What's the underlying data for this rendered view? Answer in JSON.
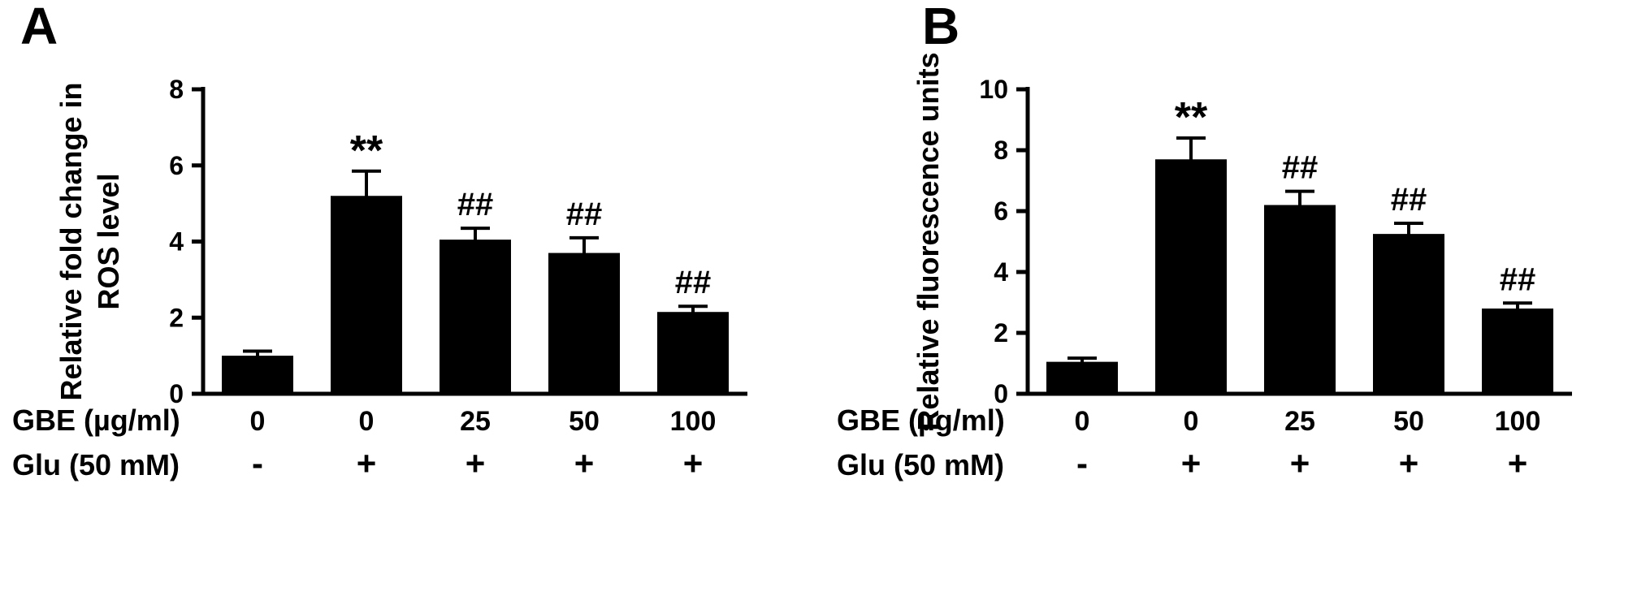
{
  "figure": {
    "background": "#ffffff",
    "ink_color": "#000000",
    "panel_labels": [
      "A",
      "B"
    ]
  },
  "chart_data": [
    {
      "type": "bar",
      "panel": "A",
      "title": "",
      "xlabel": "",
      "ylabel": "Relative fold change in ROS level",
      "ylabel_lines": [
        "Relative fold change in",
        "ROS level"
      ],
      "ylim": [
        0,
        8
      ],
      "yticks": [
        0,
        2,
        4,
        6,
        8
      ],
      "grid": false,
      "legend": "none",
      "bar_color": "#000000",
      "categories": [
        "GBE 0 / Glu -",
        "GBE 0 / Glu +",
        "GBE 25 / Glu +",
        "GBE 50 / Glu +",
        "GBE 100 / Glu +"
      ],
      "values": [
        1.0,
        5.2,
        4.05,
        3.7,
        2.15
      ],
      "errors": [
        0.12,
        0.65,
        0.3,
        0.4,
        0.15
      ],
      "annotations": [
        "",
        "**",
        "##",
        "##",
        "##"
      ],
      "x_rows": [
        {
          "label": "GBE (µg/ml)",
          "values": [
            "0",
            "0",
            "25",
            "50",
            "100"
          ]
        },
        {
          "label": "Glu (50 mM)",
          "values": [
            "-",
            "+",
            "+",
            "+",
            "+"
          ]
        }
      ]
    },
    {
      "type": "bar",
      "panel": "B",
      "title": "",
      "xlabel": "",
      "ylabel": "Relative fluorescence units",
      "ylabel_lines": [
        "Relative fluorescence units"
      ],
      "ylim": [
        0,
        10
      ],
      "yticks": [
        0,
        2,
        4,
        6,
        8,
        10
      ],
      "grid": false,
      "legend": "none",
      "bar_color": "#000000",
      "categories": [
        "GBE 0 / Glu -",
        "GBE 0 / Glu +",
        "GBE 25 / Glu +",
        "GBE 50 / Glu +",
        "GBE 100 / Glu +"
      ],
      "values": [
        1.05,
        7.7,
        6.2,
        5.25,
        2.8
      ],
      "errors": [
        0.12,
        0.7,
        0.45,
        0.35,
        0.18
      ],
      "annotations": [
        "",
        "**",
        "##",
        "##",
        "##"
      ],
      "x_rows": [
        {
          "label": "GBE (µg/ml)",
          "values": [
            "0",
            "0",
            "25",
            "50",
            "100"
          ]
        },
        {
          "label": "Glu (50 mM)",
          "values": [
            "-",
            "+",
            "+",
            "+",
            "+"
          ]
        }
      ]
    }
  ]
}
